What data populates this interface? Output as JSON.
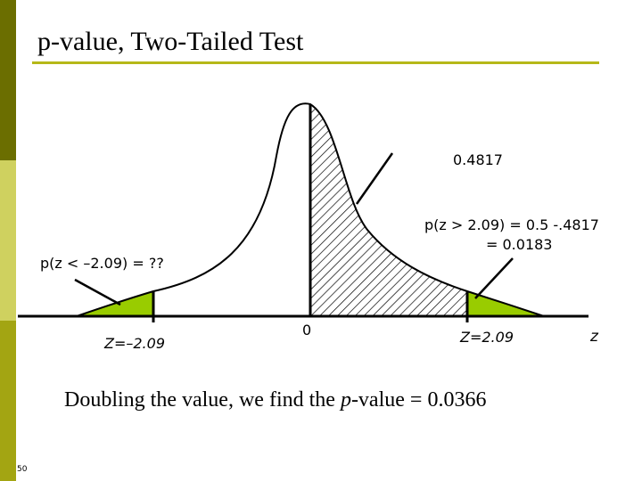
{
  "slide": {
    "title": "p-value, Two-Tailed Test",
    "page_number": "50",
    "caption": {
      "before": "Doubling the value, we find the ",
      "emphasis": "p",
      "after": "-value = 0.0366"
    }
  },
  "diagram": {
    "area_label": "0.4817",
    "right_tail_label_line1": "p(z > 2.09) = 0.5 -.4817",
    "right_tail_label_line2": "= 0.0183",
    "left_tail_label": "p(z < –2.09) = ??",
    "tick_left": "Z=–2.09",
    "tick_center": "0",
    "tick_right": "Z=2.09",
    "axis_name": "z"
  },
  "colors": {
    "accent": "#b5b818",
    "sidebar_dark": "#6b6e00",
    "sidebar_light": "#cfd15f",
    "tail_fill": "#99cc00"
  }
}
